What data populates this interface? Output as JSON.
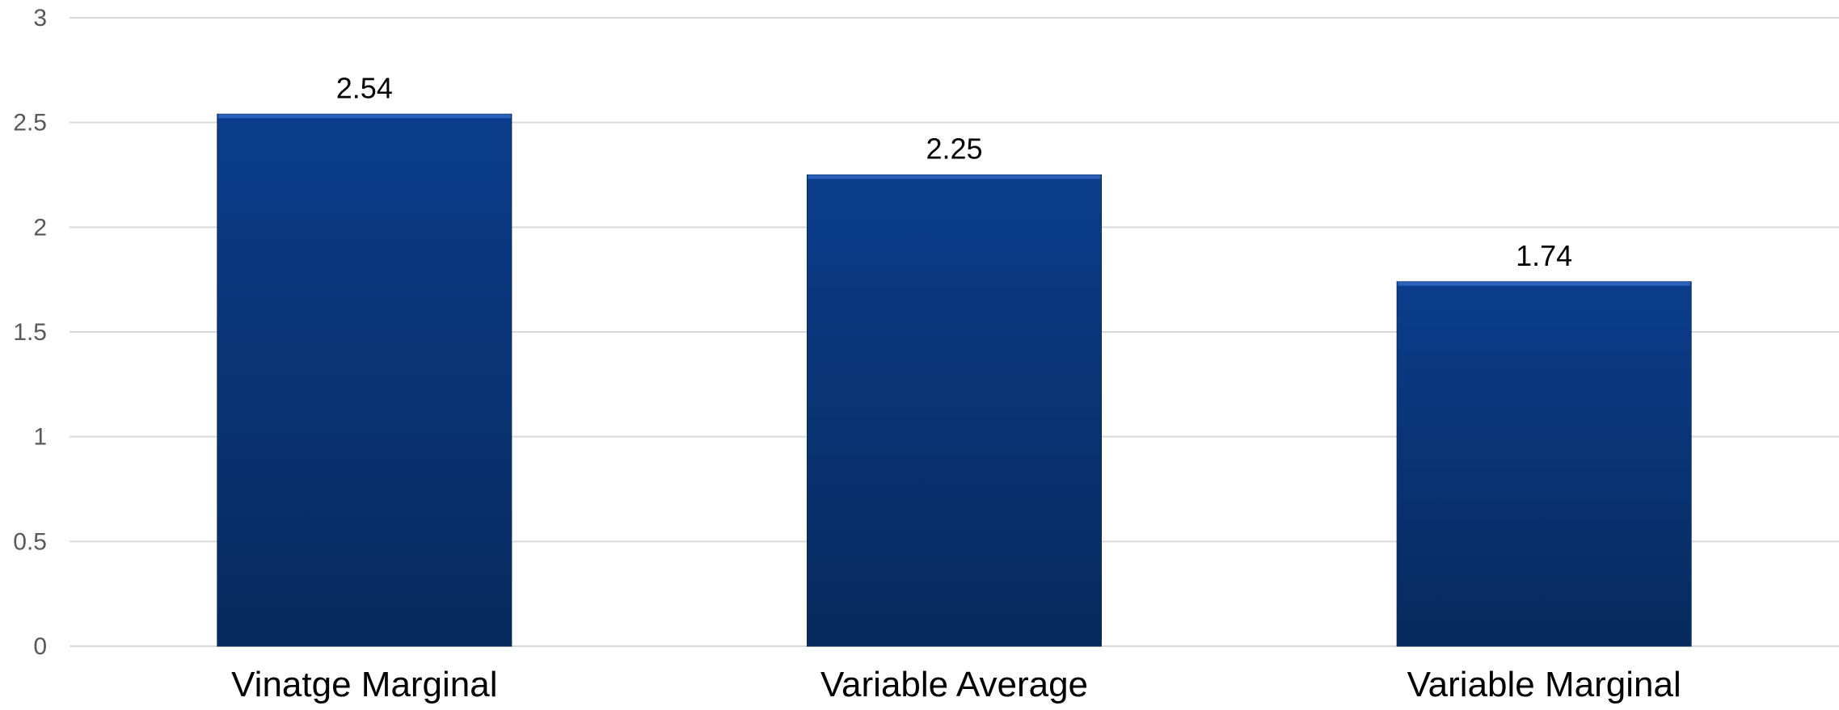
{
  "chart_data": {
    "type": "bar",
    "categories": [
      "Vinatge Marginal",
      "Variable Average",
      "Variable Marginal"
    ],
    "values": [
      2.54,
      2.25,
      1.74
    ],
    "data_labels": [
      "2.54",
      "2.25",
      "1.74"
    ],
    "title": "",
    "xlabel": "",
    "ylabel": "",
    "ylim": [
      0,
      3
    ],
    "yticks": [
      0,
      0.5,
      1,
      1.5,
      2,
      2.5,
      3
    ],
    "ytick_labels": [
      "0",
      "0.5",
      "1",
      "1.5",
      "2",
      "2.5",
      "3"
    ],
    "grid": true,
    "legend": "none",
    "colors": {
      "bar_top": "#0b3d8c",
      "bar_bottom": "#062a5c",
      "bar_highlight": "#2f65c0"
    }
  }
}
